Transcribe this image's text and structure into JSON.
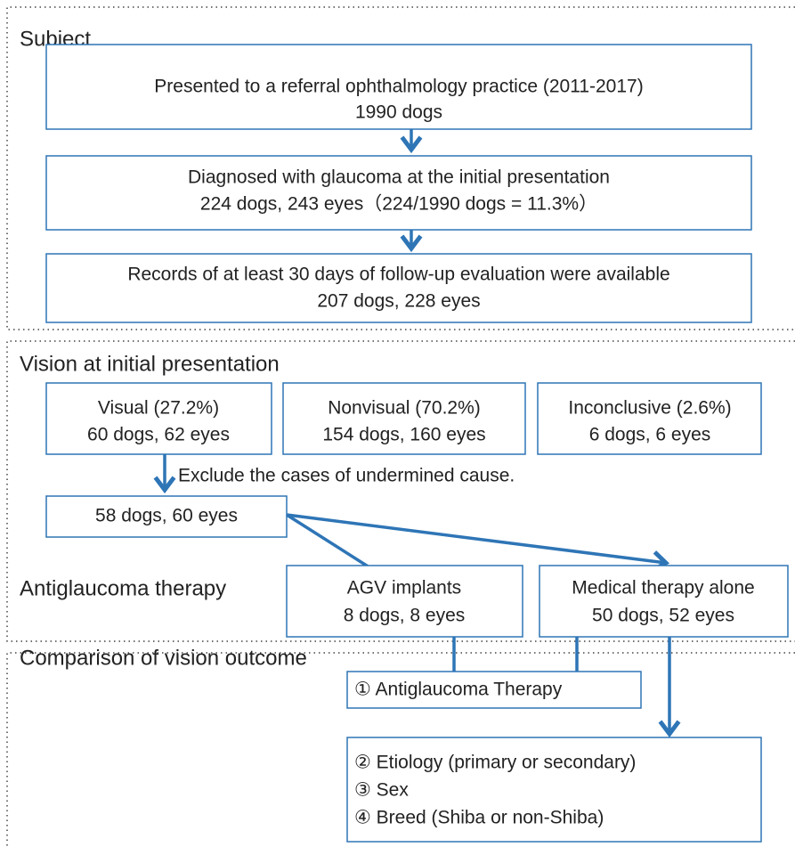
{
  "sections": [
    {
      "title": "Subject",
      "boxes": [
        {
          "lines": [
            "Presented to a referral ophthalmology practice (2011-2017)",
            "1990 dogs"
          ]
        },
        {
          "lines": [
            "Diagnosed with glaucoma at the initial presentation",
            "224 dogs, 243 eyes（224/1990 dogs = 11.3%）"
          ]
        },
        {
          "lines": [
            "Records of at least 30 days of follow-up evaluation were available",
            "207 dogs, 228 eyes"
          ]
        }
      ]
    },
    {
      "title": "Vision at initial presentation",
      "boxes": [
        {
          "lines": [
            "Visual (27.2%)",
            "60 dogs, 62 eyes"
          ]
        },
        {
          "lines": [
            "Nonvisual (70.2%)",
            "154 dogs, 160 eyes"
          ]
        },
        {
          "lines": [
            "Inconclusive (2.6%)",
            "6 dogs, 6 eyes"
          ]
        }
      ],
      "note": "Exclude the cases of undermined cause.",
      "selected": "58 dogs, 60 eyes",
      "therapy_label": "Antiglaucoma therapy",
      "therapy_boxes": [
        {
          "lines": [
            "AGV  implants",
            "8 dogs, 8 eyes"
          ]
        },
        {
          "lines": [
            "Medical therapy alone",
            "50 dogs, 52 eyes"
          ]
        }
      ]
    },
    {
      "title": "Comparison of vision outcome",
      "items": [
        "① Antiglaucoma Therapy",
        "② Etiology (primary or secondary)",
        "③ Sex",
        "④ Breed (Shiba or non-Shiba)"
      ]
    }
  ]
}
